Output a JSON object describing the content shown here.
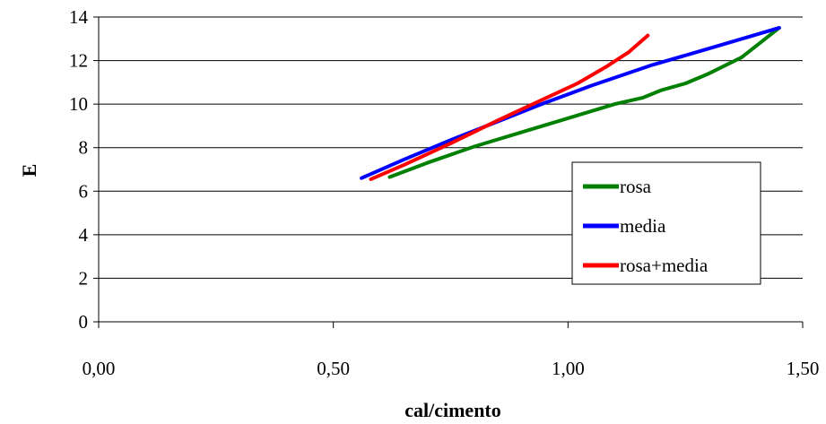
{
  "chart_data": {
    "type": "line",
    "xlabel": "cal/cimento",
    "ylabel": "E",
    "xlim": [
      0,
      1.5
    ],
    "ylim": [
      0,
      14
    ],
    "x_ticks": [
      0,
      0.5,
      1.0,
      1.5
    ],
    "x_tick_labels": [
      "0,00",
      "0,50",
      "1,00",
      "1,50"
    ],
    "y_ticks": [
      0,
      2,
      4,
      6,
      8,
      10,
      12,
      14
    ],
    "y_tick_labels": [
      "0",
      "2",
      "4",
      "6",
      "8",
      "10",
      "12",
      "14"
    ],
    "grid": "horizontal",
    "legend_position": "right",
    "series": [
      {
        "name": "rosa",
        "color": "#008000",
        "points": [
          [
            0.62,
            6.65
          ],
          [
            0.7,
            7.3
          ],
          [
            0.8,
            8.05
          ],
          [
            0.9,
            8.7
          ],
          [
            1.0,
            9.35
          ],
          [
            1.1,
            10.0
          ],
          [
            1.16,
            10.3
          ],
          [
            1.2,
            10.65
          ],
          [
            1.25,
            10.95
          ],
          [
            1.3,
            11.4
          ],
          [
            1.37,
            12.15
          ],
          [
            1.45,
            13.5
          ]
        ]
      },
      {
        "name": "media",
        "color": "#0000FF",
        "points": [
          [
            0.56,
            6.6
          ],
          [
            0.65,
            7.45
          ],
          [
            0.75,
            8.35
          ],
          [
            0.85,
            9.2
          ],
          [
            0.95,
            10.05
          ],
          [
            1.05,
            10.85
          ],
          [
            1.18,
            11.8
          ],
          [
            1.3,
            12.55
          ],
          [
            1.45,
            13.5
          ]
        ]
      },
      {
        "name": "rosa+media",
        "color": "#FF0000",
        "points": [
          [
            0.58,
            6.55
          ],
          [
            0.65,
            7.2
          ],
          [
            0.75,
            8.2
          ],
          [
            0.85,
            9.25
          ],
          [
            0.95,
            10.25
          ],
          [
            1.02,
            10.95
          ],
          [
            1.08,
            11.7
          ],
          [
            1.13,
            12.4
          ],
          [
            1.17,
            13.15
          ]
        ]
      }
    ]
  }
}
